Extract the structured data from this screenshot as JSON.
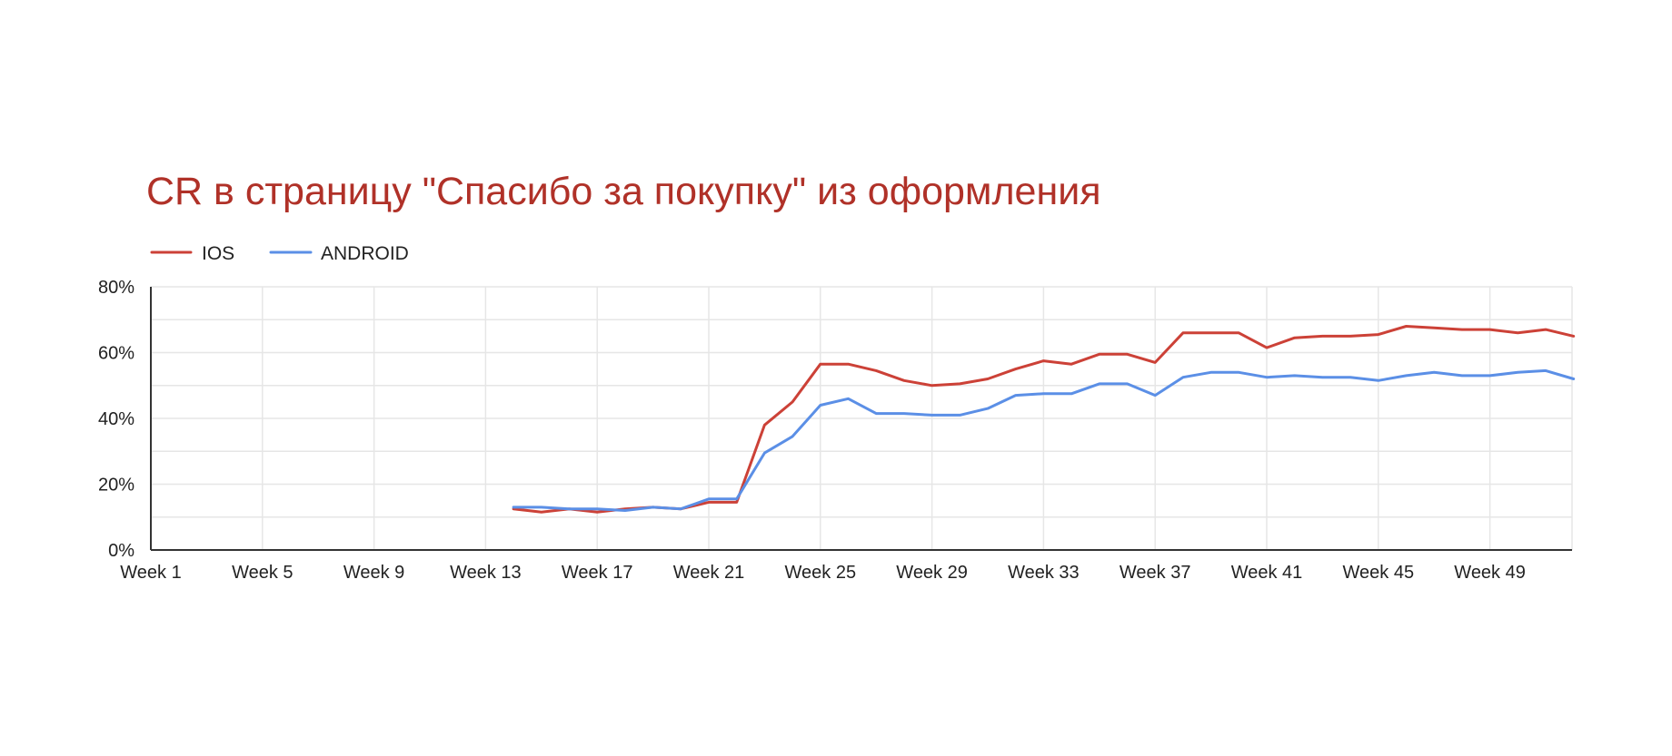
{
  "chart_data": {
    "type": "line",
    "title": "CR в страницу \"Спасибо за покупку\" из оформления",
    "xlabel": "",
    "ylabel": "",
    "categories": [
      "Week 1",
      "Week 2",
      "Week 3",
      "Week 4",
      "Week 5",
      "Week 6",
      "Week 7",
      "Week 8",
      "Week 9",
      "Week 10",
      "Week 11",
      "Week 12",
      "Week 13",
      "Week 14",
      "Week 15",
      "Week 16",
      "Week 17",
      "Week 18",
      "Week 19",
      "Week 20",
      "Week 21",
      "Week 22",
      "Week 23",
      "Week 24",
      "Week 25",
      "Week 26",
      "Week 27",
      "Week 28",
      "Week 29",
      "Week 30",
      "Week 31",
      "Week 32",
      "Week 33",
      "Week 34",
      "Week 35",
      "Week 36",
      "Week 37",
      "Week 38",
      "Week 39",
      "Week 40",
      "Week 41",
      "Week 42",
      "Week 43",
      "Week 44",
      "Week 45",
      "Week 46",
      "Week 47",
      "Week 48",
      "Week 49",
      "Week 50",
      "Week 51",
      "Week 52"
    ],
    "x_tick_labels": [
      "Week 1",
      "Week 5",
      "Week 9",
      "Week 13",
      "Week 17",
      "Week 21",
      "Week 25",
      "Week 29",
      "Week 33",
      "Week 37",
      "Week 41",
      "Week 45",
      "Week 49"
    ],
    "y_ticks": [
      0,
      20,
      40,
      60,
      80
    ],
    "y_tick_labels": [
      "0%",
      "20%",
      "40%",
      "60%",
      "80%"
    ],
    "ylim": [
      0,
      80
    ],
    "y_unit": "%",
    "grid": true,
    "legend_position": "top-left",
    "series": [
      {
        "name": "IOS",
        "color": "#cc4137",
        "values": [
          null,
          null,
          null,
          null,
          null,
          null,
          null,
          null,
          null,
          null,
          null,
          null,
          null,
          12.5,
          11.5,
          12.5,
          11.5,
          12.5,
          13,
          12.5,
          14.5,
          14.5,
          38,
          45,
          56.5,
          56.5,
          54.5,
          51.5,
          50,
          50.5,
          52,
          55,
          57.5,
          56.5,
          59.5,
          59.5,
          57,
          66,
          66,
          66,
          61.5,
          64.5,
          65,
          65,
          65.5,
          68,
          67.5,
          67,
          67,
          66,
          67,
          65
        ]
      },
      {
        "name": "ANDROID",
        "color": "#5b8fe6",
        "values": [
          null,
          null,
          null,
          null,
          null,
          null,
          null,
          null,
          null,
          null,
          null,
          null,
          null,
          13,
          13,
          12.5,
          12.5,
          12,
          13,
          12.5,
          15.5,
          15.5,
          29.5,
          34.5,
          44,
          46,
          41.5,
          41.5,
          41,
          41,
          43,
          47,
          47.5,
          47.5,
          50.5,
          50.5,
          47,
          52.5,
          54,
          54,
          52.5,
          53,
          52.5,
          52.5,
          51.5,
          53,
          54,
          53,
          53,
          54,
          54.5,
          52
        ]
      }
    ]
  }
}
